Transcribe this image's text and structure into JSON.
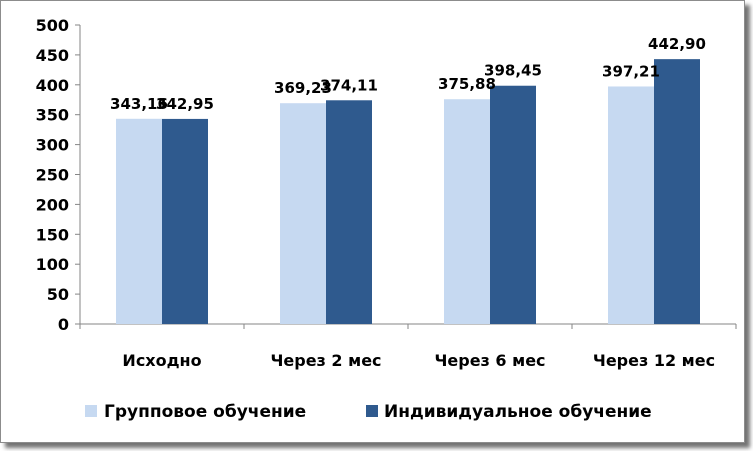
{
  "chart_data": {
    "type": "bar",
    "categories": [
      "Исходно",
      "Через 2 мес",
      "Через 6 мес",
      "Через 12 мес"
    ],
    "series": [
      {
        "name": "Групповое обучение",
        "values": [
          343.16,
          369.23,
          375.88,
          397.21
        ],
        "labels": [
          "343,16",
          "369,23",
          "375,88",
          "397,21"
        ],
        "color": "#c6d9f1"
      },
      {
        "name": "Индивидуальное обучение",
        "values": [
          342.95,
          374.11,
          398.45,
          442.9
        ],
        "labels": [
          "342,95",
          "374,11",
          "398,45",
          "442,90"
        ],
        "color": "#2f5a8e"
      }
    ],
    "yticks": [
      "0",
      "50",
      "100",
      "150",
      "200",
      "250",
      "300",
      "350",
      "400",
      "450",
      "500"
    ],
    "ylim": [
      0,
      500
    ],
    "grid": false,
    "legend_position": "bottom",
    "title": "",
    "xlabel": "",
    "ylabel": ""
  }
}
